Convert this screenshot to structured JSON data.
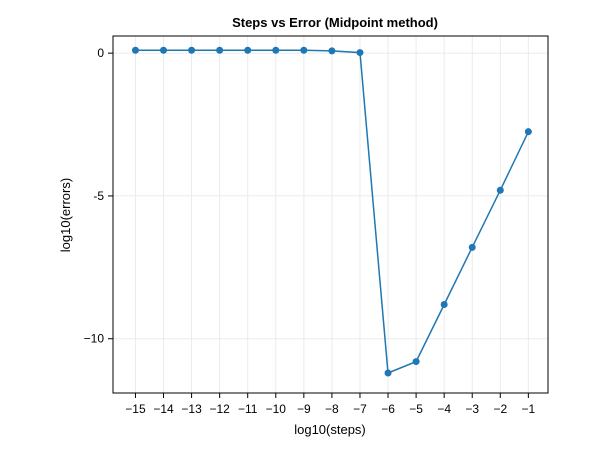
{
  "chart_data": {
    "type": "line",
    "title": "Steps vs Error (Midpoint method)",
    "xlabel": "log10(steps)",
    "ylabel": "log10(errors)",
    "xlim": [
      -15.8,
      -0.3
    ],
    "ylim": [
      -11.9,
      0.6
    ],
    "xticks": [
      -15,
      -14,
      -13,
      -12,
      -11,
      -10,
      -9,
      -8,
      -7,
      -6,
      -5,
      -4,
      -3,
      -2,
      -1
    ],
    "xtick_labels": [
      "−15",
      "−14",
      "−13",
      "−12",
      "−11",
      "−10",
      "−9",
      "−8",
      "−7",
      "−6",
      "−5",
      "−4",
      "−3",
      "−2",
      "−1"
    ],
    "yticks": [
      0,
      -5,
      -10
    ],
    "ytick_labels": [
      "0",
      "-5",
      "−10"
    ],
    "grid": true,
    "color": "#1f77b4",
    "series": [
      {
        "x": [
          -15,
          -14,
          -13,
          -12,
          -11,
          -10,
          -9,
          -8,
          -7,
          -6,
          -5,
          -4,
          -3,
          -2,
          -1
        ],
        "y": [
          0.1,
          0.1,
          0.1,
          0.1,
          0.1,
          0.1,
          0.1,
          0.08,
          0.02,
          -11.2,
          -10.8,
          -8.8,
          -6.8,
          -4.8,
          -2.75
        ]
      }
    ]
  }
}
